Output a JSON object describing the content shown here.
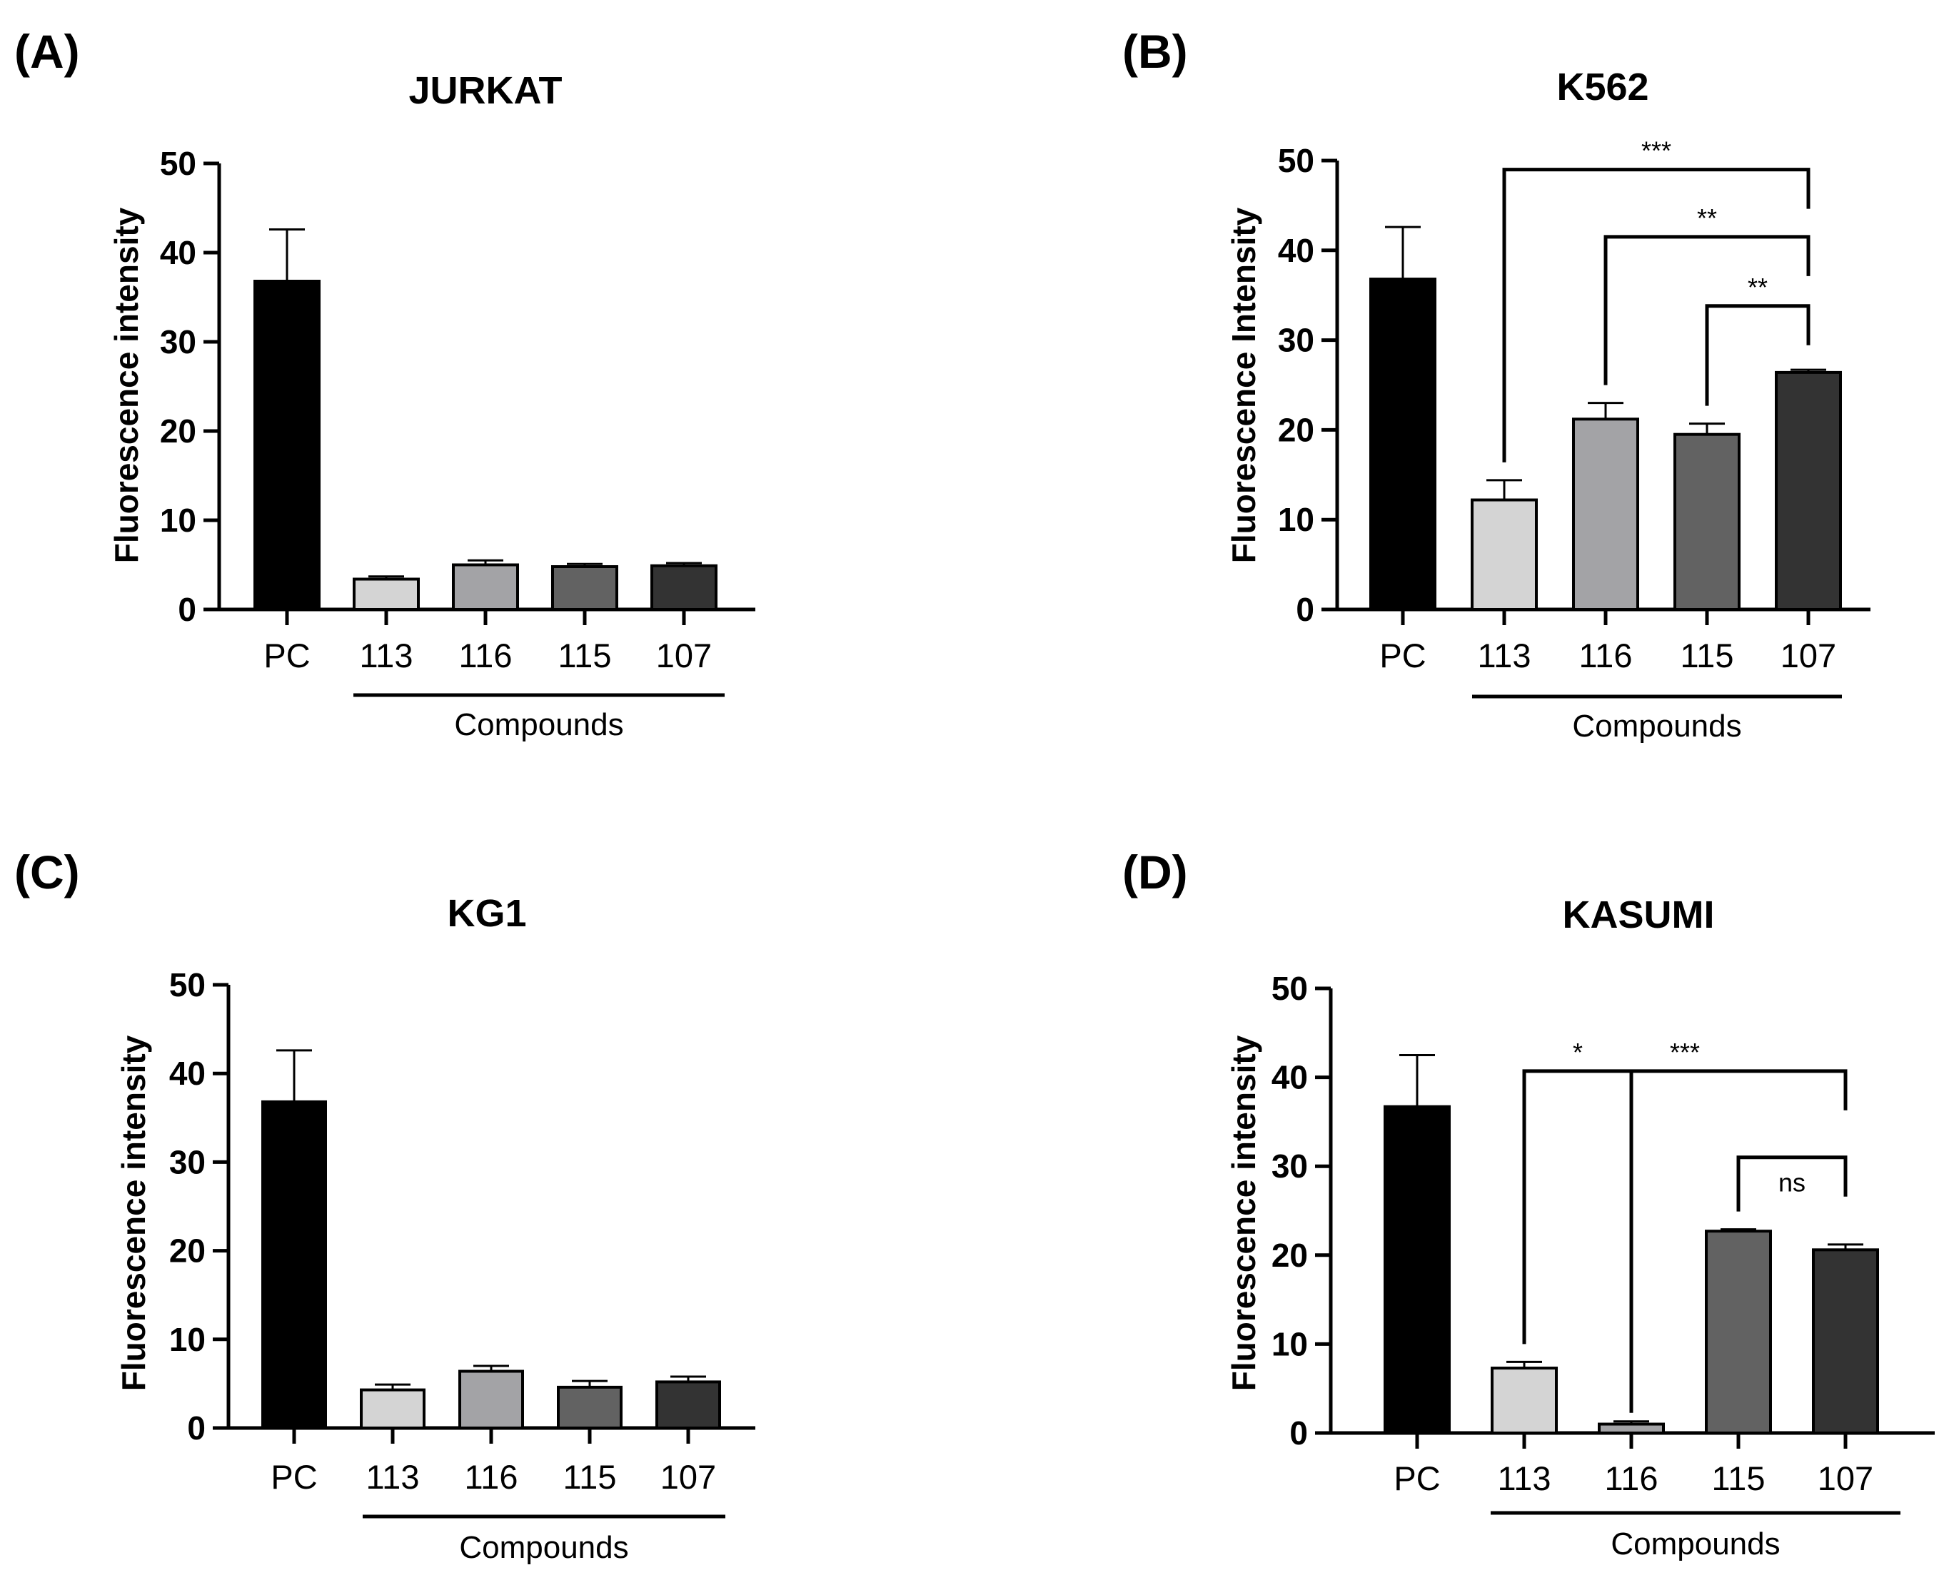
{
  "chart_data": [
    {
      "type": "bar",
      "panel": "(A)",
      "title": "JURKAT",
      "ylabel": "Fluorescence intensity",
      "xlabel": "Compounds",
      "ylim": [
        0,
        50
      ],
      "yticks": [
        "0",
        "10",
        "20",
        "30",
        "40",
        "50"
      ],
      "categories": [
        "PC",
        "113",
        "116",
        "115",
        "107"
      ],
      "values": [
        36.8,
        3.4,
        5.0,
        4.8,
        4.9
      ],
      "errors": [
        5.8,
        0.3,
        0.5,
        0.3,
        0.3
      ],
      "colors": [
        "#000000",
        "#d4d4d4",
        "#a3a3a6",
        "#626262",
        "#333333"
      ],
      "brackets": []
    },
    {
      "type": "bar",
      "panel": "(B)",
      "title": "K562",
      "ylabel": "Fluorescence Intensity",
      "xlabel": "Compounds",
      "ylim": [
        0,
        50
      ],
      "yticks": [
        "0",
        "10",
        "20",
        "30",
        "40",
        "50"
      ],
      "categories": [
        "PC",
        "113",
        "116",
        "115",
        "107"
      ],
      "values": [
        36.8,
        12.2,
        21.2,
        19.5,
        26.4
      ],
      "errors": [
        5.8,
        2.2,
        1.8,
        1.2,
        0.3
      ],
      "colors": [
        "#000000",
        "#d4d4d4",
        "#a3a3a6",
        "#626262",
        "#333333"
      ],
      "brackets": [
        {
          "from": 1,
          "to": 4,
          "y": 49.0,
          "label": "***"
        },
        {
          "from": 2,
          "to": 4,
          "y": 41.5,
          "label": "**"
        },
        {
          "from": 3,
          "to": 4,
          "y": 33.8,
          "label": "**"
        }
      ]
    },
    {
      "type": "bar",
      "panel": "(C)",
      "title": "KG1",
      "ylabel": "Fluorescence intensity",
      "xlabel": "Compounds",
      "ylim": [
        0,
        50
      ],
      "yticks": [
        "0",
        "10",
        "20",
        "30",
        "40",
        "50"
      ],
      "categories": [
        "PC",
        "113",
        "116",
        "115",
        "107"
      ],
      "values": [
        36.8,
        4.3,
        6.4,
        4.6,
        5.2
      ],
      "errors": [
        5.8,
        0.6,
        0.6,
        0.7,
        0.6
      ],
      "colors": [
        "#000000",
        "#d4d4d4",
        "#a3a3a6",
        "#626262",
        "#333333"
      ],
      "brackets": []
    },
    {
      "type": "bar",
      "panel": "(D)",
      "title": "KASUMI",
      "ylabel": "Fluorescence intensity",
      "xlabel": "Compounds",
      "ylim": [
        0,
        50
      ],
      "yticks": [
        "0",
        "10",
        "20",
        "30",
        "40",
        "50"
      ],
      "categories": [
        "PC",
        "113",
        "116",
        "115",
        "107"
      ],
      "values": [
        36.7,
        7.3,
        1.0,
        22.7,
        20.6
      ],
      "errors": [
        5.8,
        0.7,
        0.3,
        0.2,
        0.6
      ],
      "colors": [
        "#000000",
        "#d4d4d4",
        "#a3a3a6",
        "#626262",
        "#333333"
      ],
      "brackets": [
        {
          "from": 1,
          "to": 4,
          "y": 40.7,
          "label": "*",
          "label_at": 1.5,
          "mid_drop": 2
        },
        {
          "from": 3,
          "to": 4,
          "y": 31.0,
          "label": "ns"
        }
      ],
      "extra_labels": [
        {
          "text": "***",
          "at": 2.5
        }
      ]
    }
  ]
}
